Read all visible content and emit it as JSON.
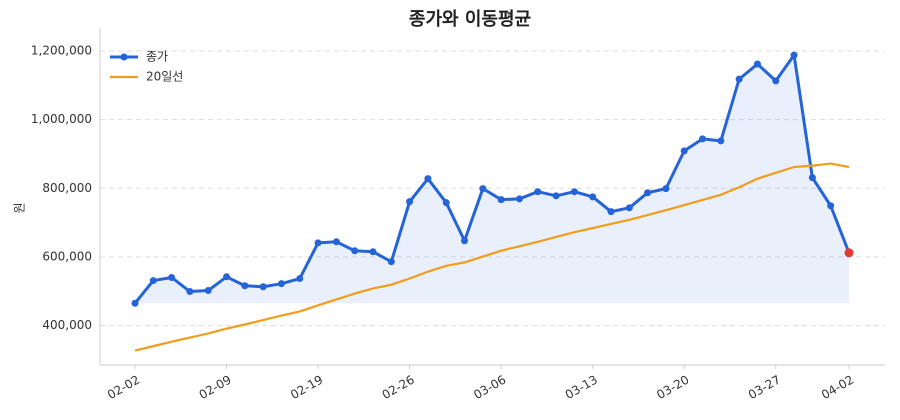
{
  "chart_data": {
    "type": "line",
    "title": "종가와 이동평균",
    "ylabel": "원",
    "categories": [
      "02-02",
      null,
      null,
      null,
      null,
      "02-09",
      null,
      null,
      null,
      null,
      "02-19",
      null,
      null,
      null,
      null,
      "02-26",
      null,
      null,
      null,
      null,
      "03-06",
      null,
      null,
      null,
      null,
      "03-13",
      null,
      null,
      null,
      null,
      "03-20",
      null,
      null,
      null,
      null,
      "03-27",
      null,
      null,
      null,
      "04-02"
    ],
    "series": [
      {
        "name": "종가",
        "color": "#2563d9",
        "marker": true,
        "fill": true,
        "values": [
          465000,
          531000,
          540000,
          499000,
          502000,
          542000,
          516000,
          513000,
          522000,
          537000,
          641000,
          644000,
          618000,
          615000,
          586000,
          761000,
          828000,
          758000,
          647000,
          799000,
          767000,
          769000,
          790000,
          778000,
          790000,
          775000,
          732000,
          743000,
          787000,
          799000,
          909000,
          944000,
          938000,
          1118000,
          1162000,
          1113000,
          1188000,
          831000,
          749000,
          612000
        ]
      },
      {
        "name": "20일선",
        "color": "#f29d1a",
        "marker": false,
        "fill": false,
        "values": [
          327000,
          340000,
          353000,
          365000,
          377000,
          391000,
          403000,
          416000,
          429000,
          441000,
          459000,
          476000,
          493000,
          508000,
          519000,
          537000,
          557000,
          574000,
          584000,
          601000,
          618000,
          631000,
          644000,
          658000,
          672000,
          684000,
          696000,
          708000,
          722000,
          736000,
          751000,
          766000,
          781000,
          803000,
          828000,
          845000,
          862000,
          866000,
          872000,
          862000
        ]
      }
    ],
    "last_point_color": "#e53935",
    "ylim": [
      285000,
      1267000
    ],
    "yticks": [
      {
        "value": 400000,
        "label": "400,000"
      },
      {
        "value": 600000,
        "label": "600,000"
      },
      {
        "value": 800000,
        "label": "800,000"
      },
      {
        "value": 1000000,
        "label": "1,000,000"
      },
      {
        "value": 1200000,
        "label": "1,200,000"
      }
    ],
    "grid": true,
    "legend": "upper left"
  }
}
